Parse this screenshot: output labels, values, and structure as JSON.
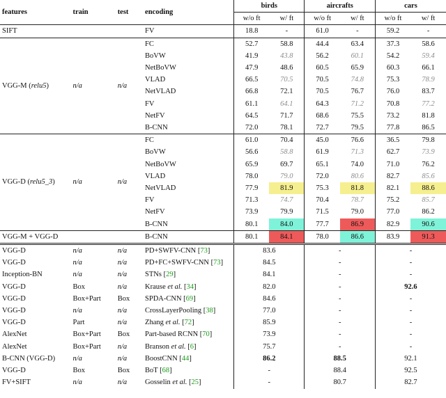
{
  "headers": {
    "features": "features",
    "train": "train",
    "test": "test",
    "encoding": "encoding",
    "birds": "birds",
    "aircrafts": "aircrafts",
    "cars": "cars",
    "wo_ft": "w/o ft",
    "w_ft": "w/ ft"
  },
  "sift_row": {
    "features": "SIFT",
    "encoding": "FV",
    "values": [
      "18.8",
      "-",
      "61.0",
      "-",
      "59.2",
      "-"
    ]
  },
  "vggm_block": {
    "features": "VGG-M (relu5)",
    "train": "n/a",
    "test": "n/a",
    "rows": [
      {
        "encoding": "FC",
        "values": [
          "52.7",
          "58.8",
          "44.4",
          "63.4",
          "37.3",
          "58.6"
        ],
        "gray": []
      },
      {
        "encoding": "BoVW",
        "values": [
          "41.9",
          "43.8",
          "56.2",
          "60.1",
          "54.2",
          "59.4"
        ],
        "gray": [
          1,
          3,
          5
        ]
      },
      {
        "encoding": "NetBoVW",
        "values": [
          "47.9",
          "48.6",
          "60.5",
          "65.9",
          "60.3",
          "66.1"
        ],
        "gray": []
      },
      {
        "encoding": "VLAD",
        "values": [
          "66.5",
          "70.5",
          "70.5",
          "74.8",
          "75.3",
          "78.9"
        ],
        "gray": [
          1,
          3,
          5
        ]
      },
      {
        "encoding": "NetVLAD",
        "values": [
          "66.8",
          "72.1",
          "70.5",
          "76.7",
          "76.0",
          "83.7"
        ],
        "gray": []
      },
      {
        "encoding": "FV",
        "values": [
          "61.1",
          "64.1",
          "64.3",
          "71.2",
          "70.8",
          "77.2"
        ],
        "gray": [
          1,
          3,
          5
        ]
      },
      {
        "encoding": "NetFV",
        "values": [
          "64.5",
          "71.7",
          "68.6",
          "75.5",
          "73.2",
          "81.8"
        ],
        "gray": []
      },
      {
        "encoding": "B-CNN",
        "values": [
          "72.0",
          "78.1",
          "72.7",
          "79.5",
          "77.8",
          "86.5"
        ],
        "gray": []
      }
    ]
  },
  "vggd_block": {
    "features": "VGG-D (relu5_3)",
    "train": "n/a",
    "test": "n/a",
    "rows": [
      {
        "encoding": "FC",
        "values": [
          "61.0",
          "70.4",
          "45.0",
          "76.6",
          "36.5",
          "79.8"
        ],
        "gray": []
      },
      {
        "encoding": "BoVW",
        "values": [
          "56.6",
          "58.8",
          "61.9",
          "71.3",
          "62.7",
          "73.9"
        ],
        "gray": [
          1,
          3,
          5
        ]
      },
      {
        "encoding": "NetBoVW",
        "values": [
          "65.9",
          "69.7",
          "65.1",
          "74.0",
          "71.0",
          "76.2"
        ],
        "gray": []
      },
      {
        "encoding": "VLAD",
        "values": [
          "78.0",
          "79.0",
          "72.0",
          "80.6",
          "82.7",
          "85.6"
        ],
        "gray": [
          1,
          3,
          5
        ]
      },
      {
        "encoding": "NetVLAD",
        "values": [
          "77.9",
          "81.9",
          "75.3",
          "81.8",
          "82.1",
          "88.6"
        ],
        "gray": [],
        "hl": {
          "1": "yellow",
          "3": "yellow",
          "5": "yellow"
        }
      },
      {
        "encoding": "FV",
        "values": [
          "71.3",
          "74.7",
          "70.4",
          "78.7",
          "75.2",
          "85.7"
        ],
        "gray": [
          1,
          3,
          5
        ]
      },
      {
        "encoding": "NetFV",
        "values": [
          "73.9",
          "79.9",
          "71.5",
          "79.0",
          "77.0",
          "86.2"
        ],
        "gray": []
      },
      {
        "encoding": "B-CNN",
        "values": [
          "80.1",
          "84.0",
          "77.7",
          "86.9",
          "82.9",
          "90.6"
        ],
        "gray": [],
        "hl": {
          "1": "cyan",
          "3": "red",
          "5": "cyan"
        }
      }
    ]
  },
  "combo_row": {
    "features": "VGG-M + VGG-D",
    "encoding": "B-CNN",
    "values": [
      "80.1",
      "84.1",
      "78.0",
      "86.6",
      "83.9",
      "91.3"
    ],
    "hl": {
      "1": "red",
      "3": "cyan",
      "5": "red"
    }
  },
  "others": [
    {
      "features": "VGG-D",
      "train": "n/a",
      "test": "n/a",
      "method": "PD+SWFV-CNN",
      "ref": "73",
      "birds": "83.6",
      "aircrafts": "-",
      "cars": "-"
    },
    {
      "features": "VGG-D",
      "train": "n/a",
      "test": "n/a",
      "method": "PD+FC+SWFV-CNN",
      "ref": "73",
      "birds": "84.5",
      "aircrafts": "-",
      "cars": "-"
    },
    {
      "features": "Inception-BN",
      "train": "n/a",
      "test": "n/a",
      "method": "STNs",
      "ref": "29",
      "birds": "84.1",
      "aircrafts": "-",
      "cars": "-"
    },
    {
      "features": "VGG-D",
      "train": "Box",
      "test": "n/a",
      "method": "Krause",
      "method_suffix": " et al.",
      "ref": "34",
      "birds": "82.0",
      "aircrafts": "-",
      "cars": "92.6",
      "bold": [
        "cars"
      ]
    },
    {
      "features": "VGG-D",
      "train": "Box+Part",
      "test": "Box",
      "method": "SPDA-CNN",
      "ref": "69",
      "birds": "84.6",
      "aircrafts": "-",
      "cars": "-"
    },
    {
      "features": "VGG-D",
      "train": "n/a",
      "test": "n/a",
      "method": "CrossLayerPooling",
      "ref": "38",
      "birds": "77.0",
      "aircrafts": "-",
      "cars": "-"
    },
    {
      "features": "VGG-D",
      "train": "Part",
      "test": "n/a",
      "method": "Zhang",
      "method_suffix": " et al.",
      "ref": "72",
      "birds": "85.9",
      "aircrafts": "-",
      "cars": "-"
    },
    {
      "features": "AlexNet",
      "train": "Box+Part",
      "test": "Box",
      "method": "Part-based RCNN",
      "ref": "70",
      "birds": "73.9",
      "aircrafts": "-",
      "cars": "-"
    },
    {
      "features": "AlexNet",
      "train": "Box+Part",
      "test": "n/a",
      "method": "Branson",
      "method_suffix": " et al.",
      "ref": "6",
      "birds": "75.7",
      "aircrafts": "-",
      "cars": "-"
    },
    {
      "features": "B-CNN (VGG-D)",
      "train": "n/a",
      "test": "n/a",
      "method": "BoostCNN",
      "ref": "44",
      "birds": "86.2",
      "aircrafts": "88.5",
      "cars": "92.1",
      "bold": [
        "birds",
        "aircrafts"
      ]
    },
    {
      "features": "VGG-D",
      "train": "Box",
      "test": "Box",
      "method": "BoT",
      "ref": "68",
      "birds": "-",
      "aircrafts": "88.4",
      "cars": "92.5"
    },
    {
      "features": "FV+SIFT",
      "train": "n/a",
      "test": "n/a",
      "method": "Gosselin",
      "method_suffix": " et al.",
      "ref": "25",
      "birds": "-",
      "aircrafts": "80.7",
      "cars": "82.7"
    }
  ]
}
